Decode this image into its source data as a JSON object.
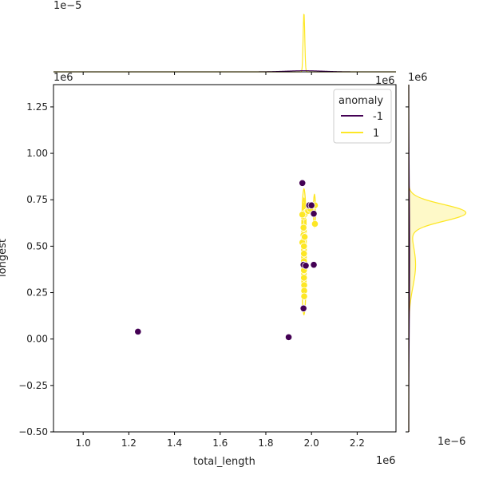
{
  "chart_data": {
    "type": "scatter",
    "title": "",
    "xlabel": "total_length",
    "ylabel": "longest",
    "x_offset_label": "1e6",
    "y_offset_label": "1e6",
    "top_marginal_offset_label": "1e−5",
    "right_marginal_offset_label": "1e6",
    "right_marginal_bottom_offset_label": "1e−6",
    "top_marginal_right_offset_label": "1e6",
    "xlim": [
      0.87,
      2.37
    ],
    "ylim": [
      -0.5,
      1.37
    ],
    "xticks": [
      "1.0",
      "1.2",
      "1.4",
      "1.6",
      "1.8",
      "2.0",
      "2.2"
    ],
    "yticks": [
      "−0.50",
      "−0.25",
      "0.00",
      "0.25",
      "0.50",
      "0.75",
      "1.00",
      "1.25"
    ],
    "legend": {
      "title": "anomaly",
      "position": "top-right",
      "entries": [
        {
          "label": "-1",
          "color": "#440154"
        },
        {
          "label": "1",
          "color": "#fde725"
        }
      ]
    },
    "series": [
      {
        "name": "-1",
        "color": "#440154",
        "points": [
          {
            "x": 1.24,
            "y": 0.04
          },
          {
            "x": 1.9,
            "y": 0.01
          },
          {
            "x": 1.96,
            "y": 0.84
          },
          {
            "x": 1.965,
            "y": 0.4
          },
          {
            "x": 1.965,
            "y": 0.165
          },
          {
            "x": 1.99,
            "y": 0.72
          },
          {
            "x": 2.0,
            "y": 0.72
          },
          {
            "x": 2.01,
            "y": 0.675
          },
          {
            "x": 2.01,
            "y": 0.4
          },
          {
            "x": 1.975,
            "y": 0.395
          }
        ]
      },
      {
        "name": "1",
        "color": "#fde725",
        "points": [
          {
            "x": 1.96,
            "y": 0.52
          },
          {
            "x": 1.965,
            "y": 0.66
          },
          {
            "x": 1.965,
            "y": 0.6
          },
          {
            "x": 1.965,
            "y": 0.56
          },
          {
            "x": 1.967,
            "y": 0.5
          },
          {
            "x": 1.967,
            "y": 0.46
          },
          {
            "x": 1.967,
            "y": 0.42
          },
          {
            "x": 1.967,
            "y": 0.37
          },
          {
            "x": 1.967,
            "y": 0.33
          },
          {
            "x": 1.968,
            "y": 0.29
          },
          {
            "x": 1.968,
            "y": 0.26
          },
          {
            "x": 1.968,
            "y": 0.23
          },
          {
            "x": 1.97,
            "y": 0.67
          },
          {
            "x": 1.975,
            "y": 0.68
          },
          {
            "x": 1.985,
            "y": 0.69
          },
          {
            "x": 1.995,
            "y": 0.7
          },
          {
            "x": 2.015,
            "y": 0.72
          },
          {
            "x": 2.015,
            "y": 0.62
          },
          {
            "x": 1.96,
            "y": 0.67
          },
          {
            "x": 1.97,
            "y": 0.55
          }
        ]
      }
    ],
    "kde_contours": [
      {
        "color": "#fde725",
        "cx": 1.967,
        "cy": 0.47,
        "rx": 0.01,
        "ry": 0.34
      },
      {
        "color": "#fde725",
        "cx": 1.967,
        "cy": 0.5,
        "rx": 0.007,
        "ry": 0.26
      },
      {
        "color": "#fde725",
        "cx": 1.967,
        "cy": 0.55,
        "rx": 0.004,
        "ry": 0.18
      },
      {
        "color": "#fde725",
        "cx": 2.013,
        "cy": 0.69,
        "rx": 0.004,
        "ry": 0.09
      },
      {
        "color": "#fde725",
        "cx": 1.99,
        "cy": 0.695,
        "rx": 0.02,
        "ry": 0.012
      }
    ],
    "marginal_x": [
      {
        "name": "1",
        "color": "#fde725",
        "peak_x": 1.967,
        "width": 0.0035,
        "peak": 1.0
      },
      {
        "name": "-1",
        "color": "#440154",
        "peak_x": 1.97,
        "width": 0.08,
        "peak": 0.02
      }
    ],
    "marginal_y": [
      {
        "name": "1",
        "color": "#fde725",
        "fill": true,
        "components": [
          {
            "mu": 0.68,
            "sigma": 0.045,
            "w": 1.0
          },
          {
            "mu": 0.4,
            "sigma": 0.12,
            "w": 0.12
          }
        ]
      },
      {
        "name": "-1",
        "color": "#440154",
        "fill": false,
        "components": [
          {
            "mu": 0.45,
            "sigma": 0.35,
            "w": 0.015
          }
        ]
      }
    ]
  }
}
